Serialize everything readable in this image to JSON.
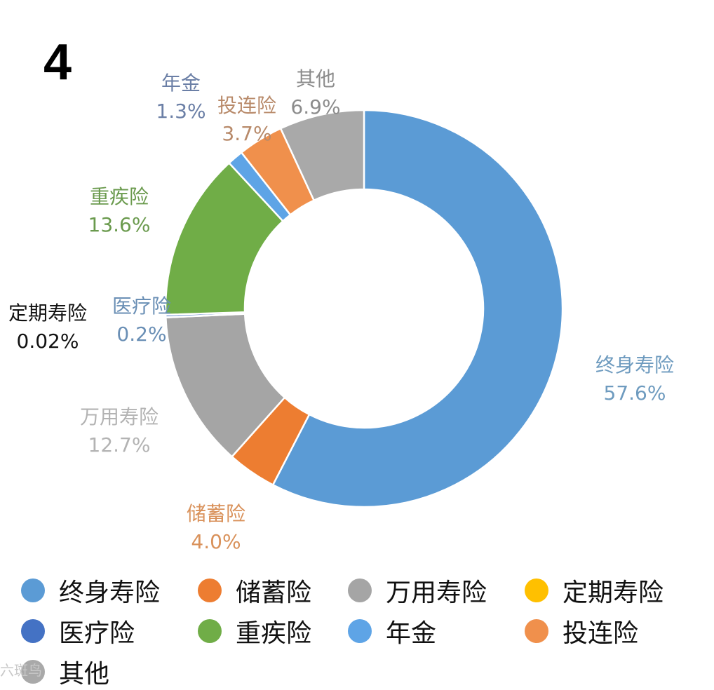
{
  "corner_number": "4",
  "watermark": "六斑鸟",
  "chart_data": {
    "type": "donut",
    "slices": [
      {
        "name": "终身寿险",
        "value": 57.6,
        "label": "57.6%",
        "color": "#5b9bd5",
        "label_color": "#6e9bbf"
      },
      {
        "name": "储蓄险",
        "value": 4.0,
        "label": "4.0%",
        "color": "#ed7d31",
        "label_color": "#d9915a"
      },
      {
        "name": "万用寿险",
        "value": 12.7,
        "label": "12.7%",
        "color": "#a5a5a5",
        "label_color": "#b3b3b3"
      },
      {
        "name": "定期寿险",
        "value": 0.02,
        "label": "0.02%",
        "color": "#ffc000",
        "label_color": "#111111"
      },
      {
        "name": "医疗险",
        "value": 0.2,
        "label": "0.2%",
        "color": "#4472c4",
        "label_color": "#6a8fb5"
      },
      {
        "name": "重疾险",
        "value": 13.6,
        "label": "13.6%",
        "color": "#70ad47",
        "label_color": "#6a9a4d"
      },
      {
        "name": "年金",
        "value": 1.3,
        "label": "1.3%",
        "color": "#5ea4e6",
        "label_color": "#6b7fa6"
      },
      {
        "name": "投连险",
        "value": 3.7,
        "label": "3.7%",
        "color": "#f0904c",
        "label_color": "#b88a6a"
      },
      {
        "name": "其他",
        "value": 6.9,
        "label": "6.9%",
        "color": "#a9a9a9",
        "label_color": "#8c8c8c"
      }
    ],
    "legend": {
      "placement": "bottom",
      "items": [
        "终身寿险",
        "储蓄险",
        "万用寿险",
        "定期寿险",
        "医疗险",
        "重疾险",
        "年金",
        "投连险",
        "其他"
      ]
    }
  }
}
